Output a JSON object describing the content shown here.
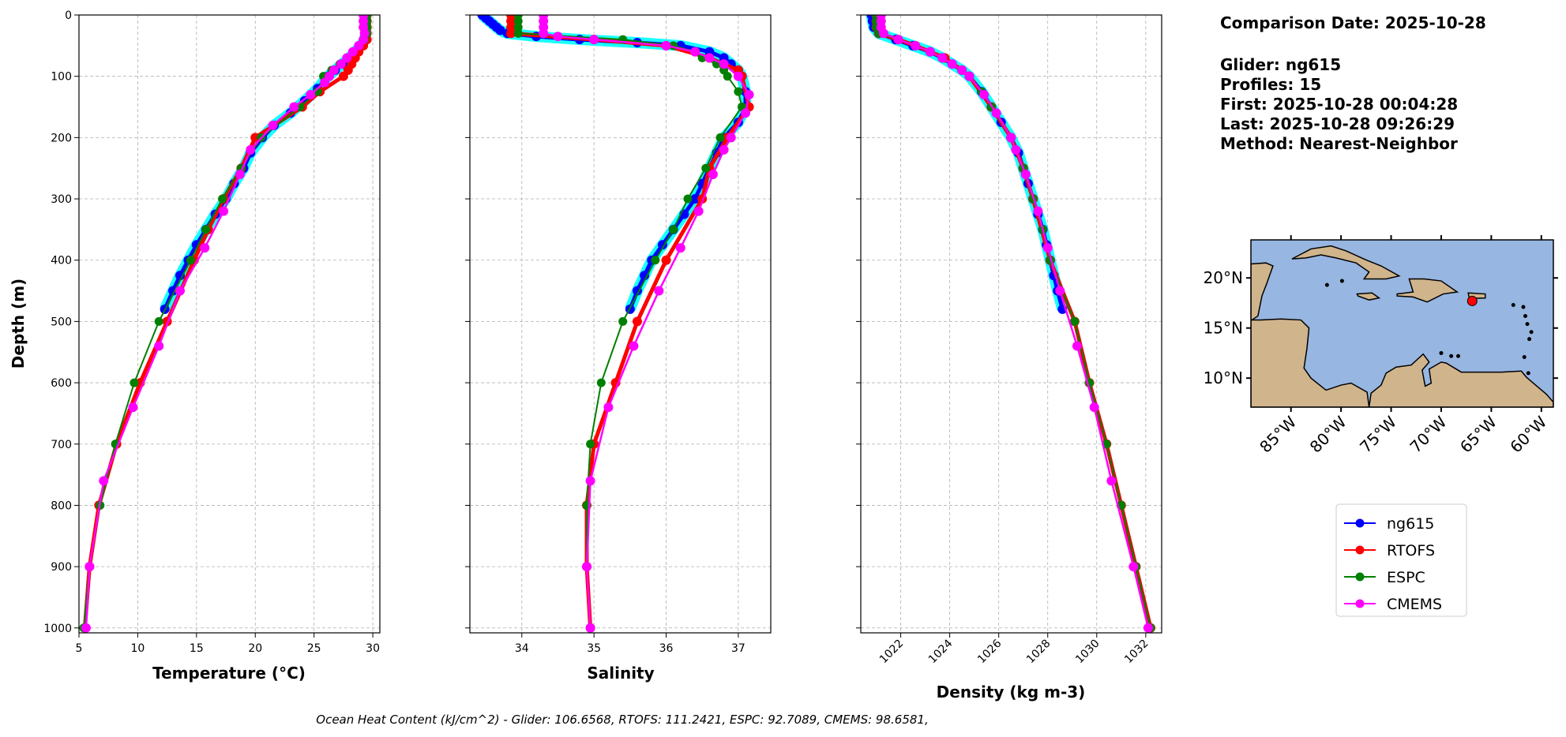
{
  "info": {
    "comparison_date": "Comparison Date: 2025-10-28",
    "glider": "Glider: ng615",
    "profiles": "Profiles: 15",
    "first": "First: 2025-10-28 00:04:28",
    "last": "Last: 2025-10-28 09:26:29",
    "method": "Method: Nearest-Neighbor"
  },
  "footer": "Ocean Heat Content (kJ/cm^2) - Glider: 106.6568,  RTOFS: 111.2421,  ESPC: 92.7089,  CMEMS: 98.6581,",
  "colors": {
    "ng615": "#0000ff",
    "RTOFS": "#ff0000",
    "ESPC": "#008000",
    "CMEMS": "#ff00ff",
    "glider_profiles": "#00ffff",
    "ocean": "#97b6e1",
    "land": "#d0b48c"
  },
  "legend": [
    "ng615",
    "RTOFS",
    "ESPC",
    "CMEMS"
  ],
  "ylabel": "Depth (m)",
  "yticks": [
    0,
    100,
    200,
    300,
    400,
    500,
    600,
    700,
    800,
    900,
    1000
  ],
  "ylim": [
    1008,
    0
  ],
  "chart_data": [
    {
      "type": "line",
      "xlabel": "Temperature (°C)",
      "xlim": [
        5,
        30.6
      ],
      "xticks": [
        5,
        10,
        15,
        20,
        25,
        30
      ],
      "grid": true,
      "series": [
        {
          "name": "ng615",
          "depth": [
            0,
            10,
            20,
            30,
            40,
            50,
            60,
            70,
            80,
            90,
            100,
            120,
            140,
            160,
            180,
            200,
            225,
            250,
            275,
            300,
            325,
            350,
            375,
            400,
            425,
            450,
            480
          ],
          "values": [
            29.4,
            29.4,
            29.4,
            29.4,
            29.3,
            29.0,
            28.5,
            28.0,
            27.4,
            26.8,
            26.2,
            25.3,
            24.2,
            23.0,
            21.6,
            20.6,
            19.6,
            19.0,
            18.2,
            17.5,
            16.6,
            15.8,
            15.0,
            14.3,
            13.6,
            13.0,
            12.3
          ]
        },
        {
          "name": "RTOFS",
          "depth": [
            0,
            10,
            20,
            30,
            40,
            50,
            60,
            70,
            80,
            90,
            100,
            125,
            150,
            200,
            250,
            300,
            350,
            400,
            500,
            600,
            700,
            800,
            900,
            1000
          ],
          "values": [
            29.5,
            29.5,
            29.5,
            29.5,
            29.5,
            29.2,
            28.8,
            28.5,
            28.2,
            27.9,
            27.5,
            25.5,
            24.0,
            20.0,
            18.8,
            17.3,
            16.0,
            14.8,
            12.5,
            10.2,
            8.2,
            6.7,
            5.9,
            5.5
          ]
        },
        {
          "name": "ESPC",
          "depth": [
            0,
            10,
            20,
            30,
            40,
            50,
            60,
            70,
            80,
            90,
            100,
            125,
            150,
            200,
            250,
            300,
            350,
            400,
            500,
            600,
            700,
            800,
            900,
            1000
          ],
          "values": [
            29.5,
            29.5,
            29.5,
            29.5,
            29.3,
            28.8,
            28.3,
            27.8,
            27.2,
            26.5,
            25.8,
            25.3,
            23.8,
            20.5,
            18.8,
            17.2,
            15.8,
            14.5,
            11.8,
            9.7,
            8.1,
            6.8,
            5.9,
            5.4
          ]
        },
        {
          "name": "CMEMS",
          "depth": [
            0,
            10,
            20,
            30,
            40,
            50,
            60,
            70,
            80,
            90,
            100,
            110,
            130,
            150,
            180,
            220,
            260,
            320,
            380,
            450,
            540,
            640,
            760,
            900,
            1000
          ],
          "values": [
            29.2,
            29.2,
            29.2,
            29.3,
            29.2,
            28.8,
            28.3,
            27.8,
            27.3,
            26.7,
            26.3,
            25.9,
            24.7,
            23.3,
            21.5,
            19.6,
            18.7,
            17.3,
            15.7,
            13.6,
            11.8,
            9.6,
            7.1,
            5.9,
            5.6
          ]
        }
      ]
    },
    {
      "type": "line",
      "xlabel": "Salinity",
      "xlim": [
        33.28,
        37.45
      ],
      "xticks": [
        34,
        35,
        36,
        37
      ],
      "grid": true,
      "series": [
        {
          "name": "ng615",
          "depth": [
            0,
            5,
            10,
            15,
            20,
            25,
            30,
            35,
            40,
            45,
            50,
            60,
            70,
            80,
            90,
            100,
            125,
            150,
            175,
            200,
            225,
            250,
            275,
            300,
            325,
            350,
            375,
            400,
            425,
            450,
            480
          ],
          "values": [
            33.45,
            33.5,
            33.55,
            33.6,
            33.65,
            33.7,
            33.8,
            34.2,
            34.8,
            35.6,
            36.2,
            36.6,
            36.8,
            36.9,
            37.0,
            37.05,
            37.1,
            37.1,
            37.0,
            36.8,
            36.7,
            36.6,
            36.5,
            36.4,
            36.25,
            36.1,
            35.95,
            35.8,
            35.7,
            35.6,
            35.5
          ]
        },
        {
          "name": "RTOFS",
          "depth": [
            0,
            10,
            20,
            30,
            40,
            50,
            70,
            90,
            100,
            150,
            200,
            250,
            300,
            400,
            500,
            600,
            700,
            800,
            900,
            1000
          ],
          "values": [
            33.85,
            33.85,
            33.85,
            33.85,
            35.0,
            36.0,
            36.6,
            37.0,
            37.05,
            37.15,
            36.85,
            36.6,
            36.5,
            36.0,
            35.6,
            35.3,
            35.0,
            34.9,
            34.9,
            34.95
          ]
        },
        {
          "name": "ESPC",
          "depth": [
            0,
            10,
            20,
            30,
            40,
            50,
            60,
            70,
            80,
            90,
            100,
            125,
            150,
            200,
            250,
            300,
            350,
            400,
            500,
            600,
            700,
            800,
            900,
            1000
          ],
          "values": [
            33.95,
            33.95,
            33.95,
            33.95,
            35.4,
            36.1,
            36.4,
            36.5,
            36.7,
            36.8,
            36.85,
            37.0,
            37.05,
            36.75,
            36.55,
            36.3,
            36.1,
            35.85,
            35.4,
            35.1,
            34.95,
            34.9,
            34.9,
            34.95
          ]
        },
        {
          "name": "CMEMS",
          "depth": [
            0,
            10,
            20,
            30,
            35,
            40,
            50,
            60,
            70,
            80,
            100,
            130,
            160,
            200,
            220,
            260,
            320,
            380,
            450,
            540,
            640,
            760,
            900,
            1000
          ],
          "values": [
            34.3,
            34.3,
            34.3,
            34.3,
            34.5,
            35.0,
            36.0,
            36.4,
            36.6,
            36.8,
            37.0,
            37.15,
            37.1,
            36.9,
            36.8,
            36.65,
            36.45,
            36.2,
            35.9,
            35.55,
            35.2,
            34.95,
            34.9,
            34.95
          ]
        }
      ]
    },
    {
      "type": "line",
      "xlabel": "Density (kg m-3)",
      "xlim": [
        1020.37,
        1032.65
      ],
      "xticks": [
        1022,
        1024,
        1026,
        1028,
        1030,
        1032
      ],
      "grid": true,
      "series": [
        {
          "name": "ng615",
          "depth": [
            0,
            10,
            20,
            30,
            40,
            50,
            60,
            70,
            80,
            90,
            100,
            125,
            150,
            175,
            200,
            225,
            250,
            275,
            300,
            325,
            350,
            375,
            400,
            425,
            450,
            480
          ],
          "values": [
            1020.8,
            1020.85,
            1020.9,
            1021.1,
            1021.8,
            1022.5,
            1023.2,
            1023.7,
            1024.1,
            1024.5,
            1024.8,
            1025.3,
            1025.7,
            1026.1,
            1026.5,
            1026.8,
            1027.0,
            1027.2,
            1027.4,
            1027.6,
            1027.8,
            1027.95,
            1028.1,
            1028.25,
            1028.4,
            1028.6
          ]
        },
        {
          "name": "RTOFS",
          "depth": [
            0,
            10,
            20,
            30,
            40,
            50,
            70,
            90,
            100,
            150,
            200,
            250,
            300,
            400,
            500,
            600,
            700,
            800,
            900,
            1000
          ],
          "values": [
            1021.0,
            1021.0,
            1021.0,
            1021.1,
            1021.9,
            1022.6,
            1023.8,
            1024.5,
            1024.8,
            1025.7,
            1026.5,
            1027.0,
            1027.4,
            1028.1,
            1029.1,
            1029.7,
            1030.4,
            1031.0,
            1031.6,
            1032.2
          ]
        },
        {
          "name": "ESPC",
          "depth": [
            0,
            10,
            20,
            30,
            40,
            50,
            60,
            70,
            80,
            90,
            100,
            125,
            150,
            200,
            250,
            300,
            350,
            400,
            500,
            600,
            700,
            800,
            900,
            1000
          ],
          "values": [
            1021.0,
            1021.0,
            1021.0,
            1021.1,
            1021.9,
            1022.6,
            1023.2,
            1023.7,
            1024.1,
            1024.5,
            1024.8,
            1025.3,
            1025.7,
            1026.5,
            1027.0,
            1027.4,
            1027.8,
            1028.1,
            1029.1,
            1029.7,
            1030.4,
            1031.0,
            1031.6,
            1032.2
          ]
        },
        {
          "name": "CMEMS",
          "depth": [
            0,
            10,
            20,
            30,
            40,
            50,
            60,
            70,
            80,
            90,
            100,
            130,
            160,
            200,
            220,
            260,
            320,
            380,
            450,
            540,
            640,
            760,
            900,
            1000
          ],
          "values": [
            1021.2,
            1021.2,
            1021.2,
            1021.3,
            1021.9,
            1022.6,
            1023.2,
            1023.7,
            1024.1,
            1024.5,
            1024.8,
            1025.4,
            1025.9,
            1026.5,
            1026.7,
            1027.1,
            1027.6,
            1028.0,
            1028.5,
            1029.2,
            1029.9,
            1030.6,
            1031.5,
            1032.1
          ]
        }
      ]
    }
  ],
  "map": {
    "lon_range": [
      -89,
      -58.8
    ],
    "lat_range": [
      7.1,
      23.8
    ],
    "lon_ticks": [
      "85°W",
      "80°W",
      "75°W",
      "70°W",
      "65°W",
      "60°W"
    ],
    "lon_tick_values": [
      -85,
      -80,
      -75,
      -70,
      -65,
      -60
    ],
    "lat_ticks": [
      "20°N",
      "15°N",
      "10°N"
    ],
    "lat_tick_values": [
      20,
      15,
      10
    ],
    "glider_position": {
      "lon": -66.9,
      "lat": 17.7
    }
  }
}
